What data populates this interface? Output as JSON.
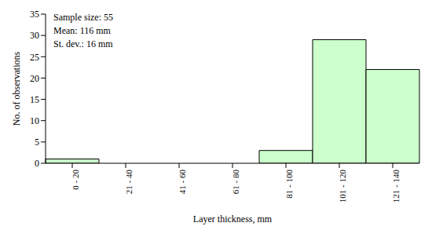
{
  "chart_data": {
    "type": "bar",
    "categories": [
      "0 - 20",
      "21 - 40",
      "41 - 60",
      "61 - 80",
      "81 - 100",
      "101 - 120",
      "121 - 140"
    ],
    "values": [
      1,
      0,
      0,
      0,
      3,
      29,
      22
    ],
    "color": "#ccffcc",
    "ylim": [
      0,
      35
    ],
    "yticks": [
      0,
      5,
      10,
      15,
      20,
      25,
      30,
      35
    ],
    "grid": false,
    "x_label": "Layer thickness, mm",
    "y_label": "No. of observations",
    "annotations": [
      "Sample size: 55",
      "Mean: 116 mm",
      "St. dev.: 16 mm"
    ]
  }
}
